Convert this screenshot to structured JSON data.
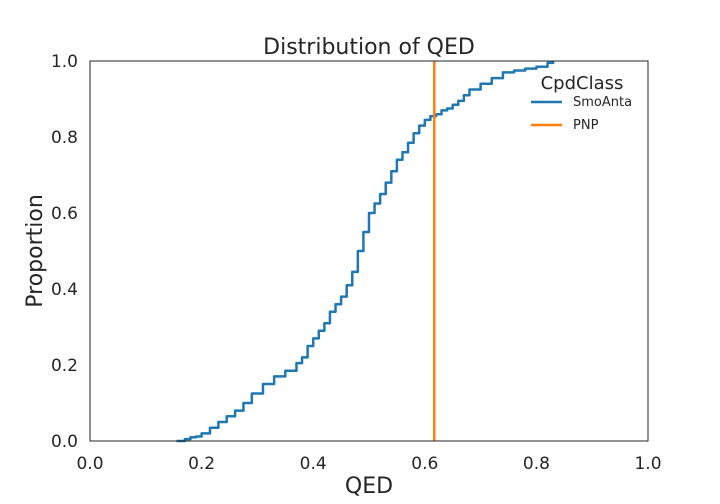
{
  "chart_data": {
    "type": "line",
    "title": "Distribution of QED",
    "xlabel": "QED",
    "ylabel": "Proportion",
    "xlim": [
      0.0,
      1.0
    ],
    "ylim": [
      0.0,
      1.0
    ],
    "x_ticks": [
      "0.0",
      "0.2",
      "0.4",
      "0.6",
      "0.8",
      "1.0"
    ],
    "y_ticks": [
      "0.0",
      "0.2",
      "0.4",
      "0.6",
      "0.8",
      "1.0"
    ],
    "grid": false,
    "legend": {
      "title": "CpdClass",
      "placement": "top-right",
      "entries": [
        "SmoAnta",
        "PNP"
      ]
    },
    "series": [
      {
        "name": "SmoAnta",
        "color": "#1f77b4",
        "kind": "ecdf",
        "x": [
          0.155,
          0.17,
          0.18,
          0.19,
          0.2,
          0.215,
          0.23,
          0.245,
          0.26,
          0.275,
          0.29,
          0.31,
          0.33,
          0.35,
          0.37,
          0.38,
          0.39,
          0.4,
          0.41,
          0.42,
          0.43,
          0.44,
          0.45,
          0.46,
          0.47,
          0.48,
          0.49,
          0.5,
          0.51,
          0.52,
          0.53,
          0.54,
          0.55,
          0.56,
          0.57,
          0.58,
          0.59,
          0.6,
          0.61,
          0.62,
          0.63,
          0.64,
          0.65,
          0.66,
          0.67,
          0.68,
          0.7,
          0.72,
          0.74,
          0.76,
          0.78,
          0.8,
          0.82,
          0.83
        ],
        "y": [
          0.0,
          0.005,
          0.01,
          0.012,
          0.02,
          0.035,
          0.05,
          0.065,
          0.08,
          0.1,
          0.125,
          0.15,
          0.17,
          0.185,
          0.205,
          0.22,
          0.25,
          0.27,
          0.29,
          0.31,
          0.34,
          0.36,
          0.38,
          0.41,
          0.445,
          0.5,
          0.55,
          0.6,
          0.625,
          0.65,
          0.68,
          0.71,
          0.74,
          0.76,
          0.785,
          0.81,
          0.83,
          0.845,
          0.855,
          0.86,
          0.87,
          0.875,
          0.885,
          0.895,
          0.91,
          0.925,
          0.94,
          0.955,
          0.97,
          0.975,
          0.98,
          0.985,
          0.995,
          1.0
        ]
      },
      {
        "name": "PNP",
        "color": "#ff7f0e",
        "kind": "vertical",
        "x": [
          0.617,
          0.617
        ],
        "y": [
          0.0,
          1.0
        ]
      }
    ]
  }
}
